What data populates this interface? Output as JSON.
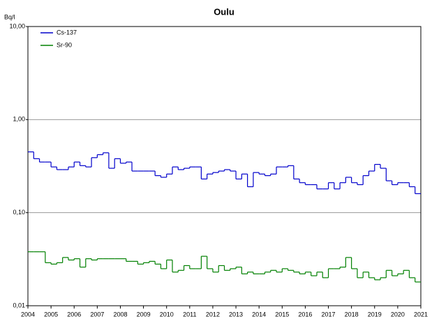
{
  "chart_data": {
    "type": "step",
    "title": "Oulu",
    "y_label": "Bq/l",
    "log_y": true,
    "grid": true,
    "legend": "upper left",
    "x": [
      2004,
      2004.25,
      2004.5,
      2004.75,
      2005,
      2005.25,
      2005.5,
      2005.75,
      2006,
      2006.25,
      2006.5,
      2006.75,
      2007,
      2007.25,
      2007.5,
      2007.75,
      2008,
      2008.25,
      2008.5,
      2008.75,
      2009,
      2009.25,
      2009.5,
      2009.75,
      2010,
      2010.25,
      2010.5,
      2010.75,
      2011,
      2011.25,
      2011.5,
      2011.75,
      2012,
      2012.25,
      2012.5,
      2012.75,
      2013,
      2013.25,
      2013.5,
      2013.75,
      2014,
      2014.25,
      2014.5,
      2014.75,
      2015,
      2015.25,
      2015.5,
      2015.75,
      2016,
      2016.25,
      2016.5,
      2016.75,
      2017,
      2017.25,
      2017.5,
      2017.75,
      2018,
      2018.25,
      2018.5,
      2018.75,
      2019,
      2019.25,
      2019.5,
      2019.75,
      2020,
      2020.25,
      2020.5,
      2020.75
    ],
    "series": [
      {
        "name": "Cs-137",
        "color": "#0000cc",
        "values": [
          0.45,
          0.38,
          0.35,
          0.35,
          0.31,
          0.29,
          0.29,
          0.31,
          0.35,
          0.32,
          0.31,
          0.39,
          0.42,
          0.44,
          0.3,
          0.38,
          0.34,
          0.35,
          0.28,
          0.28,
          0.28,
          0.28,
          0.25,
          0.24,
          0.26,
          0.31,
          0.29,
          0.3,
          0.31,
          0.31,
          0.23,
          0.26,
          0.27,
          0.28,
          0.29,
          0.28,
          0.23,
          0.26,
          0.19,
          0.27,
          0.26,
          0.25,
          0.26,
          0.31,
          0.31,
          0.32,
          0.23,
          0.21,
          0.2,
          0.2,
          0.18,
          0.18,
          0.21,
          0.18,
          0.21,
          0.24,
          0.21,
          0.2,
          0.25,
          0.28,
          0.33,
          0.3,
          0.22,
          0.2,
          0.21,
          0.21,
          0.19,
          0.16
        ]
      },
      {
        "name": "Sr-90",
        "color": "#008000",
        "values": [
          0.038,
          0.038,
          0.038,
          0.029,
          0.028,
          0.029,
          0.033,
          0.031,
          0.032,
          0.026,
          0.032,
          0.031,
          0.032,
          0.032,
          0.032,
          0.032,
          0.032,
          0.03,
          0.03,
          0.028,
          0.029,
          0.03,
          0.028,
          0.025,
          0.031,
          0.023,
          0.024,
          0.027,
          0.025,
          0.025,
          0.034,
          0.025,
          0.023,
          0.027,
          0.024,
          0.025,
          0.026,
          0.022,
          0.023,
          0.022,
          0.022,
          0.023,
          0.024,
          0.023,
          0.025,
          0.024,
          0.023,
          0.022,
          0.023,
          0.021,
          0.023,
          0.02,
          0.025,
          0.025,
          0.026,
          0.033,
          0.025,
          0.02,
          0.023,
          0.02,
          0.019,
          0.02,
          0.024,
          0.021,
          0.022,
          0.024,
          0.02,
          0.018
        ]
      }
    ],
    "xlim": [
      2004,
      2021
    ],
    "xticks": [
      2004,
      2005,
      2006,
      2007,
      2008,
      2009,
      2010,
      2011,
      2012,
      2013,
      2014,
      2015,
      2016,
      2017,
      2018,
      2019,
      2020,
      2021
    ],
    "ylim": [
      0.01,
      10
    ],
    "yticks": [
      {
        "value": 0.01,
        "label": "0,01"
      },
      {
        "value": 0.1,
        "label": "0,10"
      },
      {
        "value": 1,
        "label": "1,00"
      },
      {
        "value": 10,
        "label": "10,00"
      }
    ]
  }
}
